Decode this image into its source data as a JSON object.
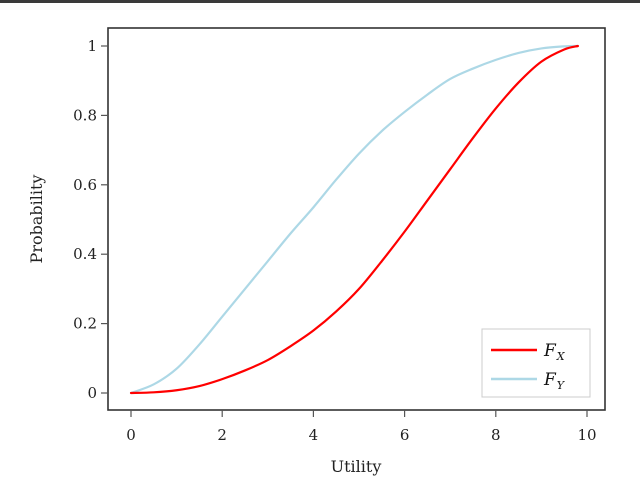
{
  "chart_data": {
    "type": "line",
    "title": "",
    "xlabel": "Utility",
    "ylabel": "Probability",
    "xlim": [
      -0.5,
      10.4
    ],
    "ylim": [
      -0.05,
      1.05
    ],
    "xticks": [
      0,
      2,
      4,
      6,
      8,
      10
    ],
    "yticks": [
      0,
      0.2,
      0.4,
      0.6,
      0.8,
      1
    ],
    "xtick_labels": [
      "0",
      "2",
      "4",
      "6",
      "8",
      "10"
    ],
    "ytick_labels": [
      "0",
      "0.2",
      "0.4",
      "0.6",
      "0.8",
      "1"
    ],
    "grid": false,
    "legend_position": "lower right",
    "x": [
      0,
      0.5,
      1,
      1.5,
      2,
      2.5,
      3,
      3.5,
      4,
      4.5,
      5,
      5.5,
      6,
      6.5,
      7,
      7.5,
      8,
      8.5,
      9,
      9.5,
      9.8
    ],
    "series": [
      {
        "name": "F_X",
        "legend_main": "F",
        "legend_sub": "X",
        "color": "#ff0000",
        "values": [
          0,
          0.002,
          0.008,
          0.02,
          0.04,
          0.065,
          0.095,
          0.135,
          0.18,
          0.235,
          0.3,
          0.38,
          0.465,
          0.555,
          0.645,
          0.735,
          0.82,
          0.895,
          0.955,
          0.99,
          1.0
        ]
      },
      {
        "name": "F_Y",
        "legend_main": "F",
        "legend_sub": "Y",
        "color": "#add8e6",
        "values": [
          0,
          0.025,
          0.07,
          0.14,
          0.22,
          0.3,
          0.38,
          0.46,
          0.535,
          0.615,
          0.69,
          0.755,
          0.81,
          0.86,
          0.905,
          0.935,
          0.96,
          0.98,
          0.993,
          0.999,
          1.0
        ]
      }
    ]
  },
  "colors": {
    "frame": "#333333",
    "legend_border": "#cccccc"
  }
}
